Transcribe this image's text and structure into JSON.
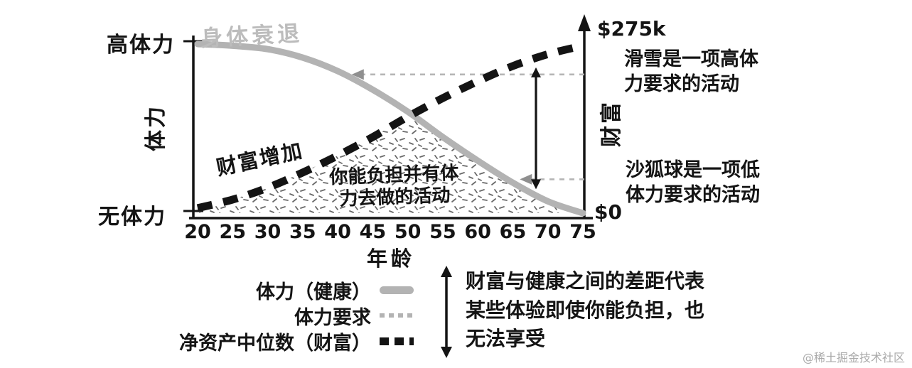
{
  "watermark": "@稀土掘金技术社区",
  "colors": {
    "curve_gray": "#b3b3b3",
    "curve_black": "#141414",
    "reference_gray": "#b5b5b5",
    "arrowhead_gray": "#8f8f8f",
    "annotation_gray": "#bcbcbc",
    "watermark_gray": "#a9a9a9"
  },
  "chart_data": {
    "type": "line",
    "x": [
      20,
      25,
      30,
      35,
      40,
      45,
      50,
      55,
      60,
      65,
      70,
      75
    ],
    "xlabel": "年龄",
    "y_left": {
      "axis_label": "体力",
      "top_label": "高体力",
      "bottom_label": "无体力"
    },
    "y_right": {
      "axis_label": "财富",
      "top_label": "$275k",
      "bottom_label": "$0",
      "range": [
        0,
        275000
      ]
    },
    "series": [
      {
        "name": "体力（健康）",
        "style": "solid",
        "color": "#b3b3b3",
        "values": [
          100,
          99,
          97,
          92,
          84,
          73,
          60,
          45,
          31,
          18,
          7,
          0
        ]
      },
      {
        "name": "净资产中位数（财富）",
        "style": "dashed",
        "color": "#141414",
        "values": [
          3,
          8,
          15,
          24,
          34,
          45,
          57,
          68,
          78,
          87,
          94,
          99
        ]
      }
    ],
    "annotations": {
      "decline": "身体衰退",
      "wealth": "财富增加",
      "zone": "你能负担并有体力去做的活动"
    },
    "reference_lines": [
      {
        "text": "滑雪是一项高体力要求的活动",
        "level": 82,
        "age_tip": 42
      },
      {
        "text": "沙狐球是一项低体力要求的活动",
        "level": 20,
        "age_tip": 66
      }
    ],
    "legend": [
      {
        "label": "体力（健康）",
        "swatch": "solid-gray"
      },
      {
        "label": "体力要求",
        "swatch": "dotted-gray"
      },
      {
        "label": "净资产中位数（财富）",
        "swatch": "dashed-black"
      }
    ],
    "gap_note": "财富与健康之间的差距代表某些体验即使你能负担，也无法享受"
  }
}
